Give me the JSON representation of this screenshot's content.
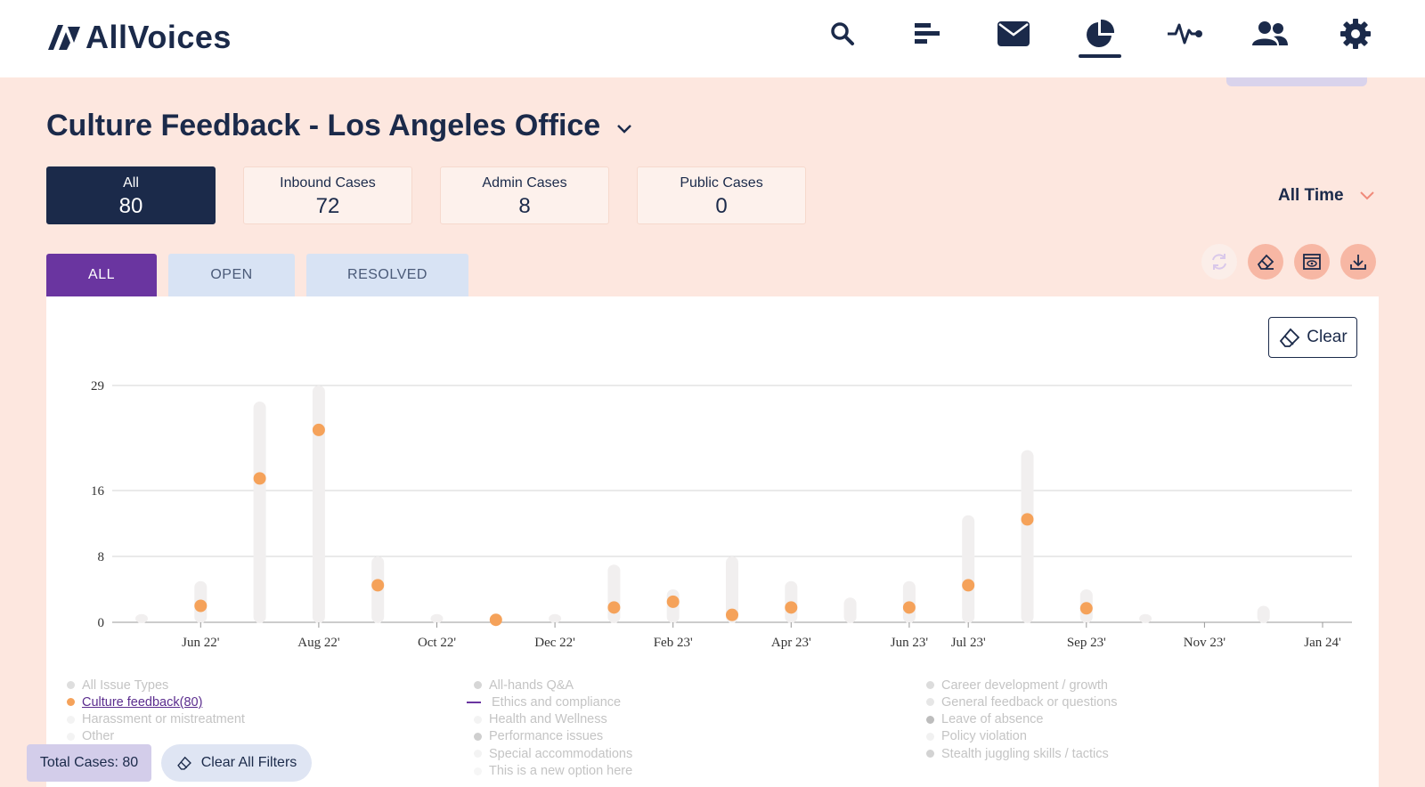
{
  "app": {
    "brand": "AllVoices"
  },
  "nav": {
    "items": [
      {
        "name": "search-icon"
      },
      {
        "name": "bars-icon"
      },
      {
        "name": "mail-icon"
      },
      {
        "name": "pie-chart-icon",
        "active": true
      },
      {
        "name": "pulse-icon"
      },
      {
        "name": "users-icon"
      },
      {
        "name": "gear-icon"
      }
    ]
  },
  "header": {
    "title": "Culture Feedback - Los Angeles Office"
  },
  "stats": [
    {
      "label": "All",
      "value": "80",
      "active": true
    },
    {
      "label": "Inbound Cases",
      "value": "72"
    },
    {
      "label": "Admin Cases",
      "value": "8"
    },
    {
      "label": "Public Cases",
      "value": "0"
    }
  ],
  "time_filter": {
    "selected": "All Time"
  },
  "tabs": [
    {
      "label": "ALL",
      "active": true
    },
    {
      "label": "OPEN"
    },
    {
      "label": "RESOLVED"
    }
  ],
  "toolbar": {
    "buttons": [
      "refresh-icon",
      "eraser-icon",
      "preview-icon",
      "download-icon"
    ]
  },
  "panel": {
    "clear_label": "Clear"
  },
  "colors": {
    "navy": "#1b2a4a",
    "purple": "#6a35a0",
    "orange": "#f5a25a",
    "peach_bg": "#fde7df",
    "bar_gray": "#f1efef"
  },
  "chart_data": {
    "type": "scatter",
    "title": "",
    "xlabel": "",
    "ylabel": "",
    "y_ticks": [
      0,
      8,
      16,
      29
    ],
    "x_tick_labels": [
      "Jun 22'",
      "Aug 22'",
      "Oct 22'",
      "Dec 22'",
      "Feb 23'",
      "Apr 23'",
      "Jun 23'",
      "Jul 23'",
      "Sep 23'",
      "Nov 23'",
      "Jan 24'"
    ],
    "x_tick_index": [
      1,
      3,
      5,
      7,
      9,
      11,
      13,
      14,
      16,
      18,
      20
    ],
    "periods": 21,
    "totals": [
      1,
      5,
      27,
      29,
      8,
      1,
      0,
      1,
      7,
      4,
      8,
      5,
      3,
      5,
      13,
      21,
      4,
      1,
      0,
      2,
      0
    ],
    "series": [
      {
        "name": "Culture feedback(80)",
        "color": "#f5a25a",
        "points": [
          {
            "i": 1,
            "y": 2
          },
          {
            "i": 2,
            "y": 17.5
          },
          {
            "i": 3,
            "y": 23.5
          },
          {
            "i": 4,
            "y": 4.5
          },
          {
            "i": 6,
            "y": 0.3
          },
          {
            "i": 8,
            "y": 1.8
          },
          {
            "i": 9,
            "y": 2.5
          },
          {
            "i": 10,
            "y": 0.9
          },
          {
            "i": 11,
            "y": 1.8
          },
          {
            "i": 13,
            "y": 1.8
          },
          {
            "i": 14,
            "y": 4.5
          },
          {
            "i": 15,
            "y": 12.5
          },
          {
            "i": 16,
            "y": 1.7
          }
        ]
      }
    ],
    "legend": [
      {
        "label": "All Issue Types",
        "marker": "dot",
        "color": "#dedede"
      },
      {
        "label": "Culture feedback(80)",
        "marker": "dot",
        "color": "#f5a25a",
        "active": true
      },
      {
        "label": "Harassment or mistreatment",
        "marker": "dot",
        "color": "#f3f3f3"
      },
      {
        "label": "Other",
        "marker": "dot",
        "color": "#f3f3f3"
      },
      {
        "label": "All-hands Q&A",
        "marker": "dot",
        "color": "#d6d6d6"
      },
      {
        "label": "Ethics and compliance",
        "marker": "dash",
        "color": "#6a35a0"
      },
      {
        "label": "Health and Wellness",
        "marker": "dot",
        "color": "#f3f3f3"
      },
      {
        "label": "Performance issues",
        "marker": "dot",
        "color": "#cfcfcf"
      },
      {
        "label": "Special accommodations",
        "marker": "dot",
        "color": "#f3f3f3"
      },
      {
        "label": "This is a new option here",
        "marker": "dot",
        "color": "#f6f6f6"
      },
      {
        "label": "Career development / growth",
        "marker": "dot",
        "color": "#dcdcdc"
      },
      {
        "label": "General feedback or questions",
        "marker": "dot",
        "color": "#e6e6e6"
      },
      {
        "label": "Leave of absence",
        "marker": "dot",
        "color": "#bdbdbd"
      },
      {
        "label": "Policy violation",
        "marker": "dot",
        "color": "#f1f1f1"
      },
      {
        "label": "Stealth juggling skills / tactics",
        "marker": "dot",
        "color": "#d3d3d3"
      }
    ]
  },
  "footer": {
    "total_cases": "Total Cases: 80",
    "clear_all": "Clear All Filters"
  }
}
